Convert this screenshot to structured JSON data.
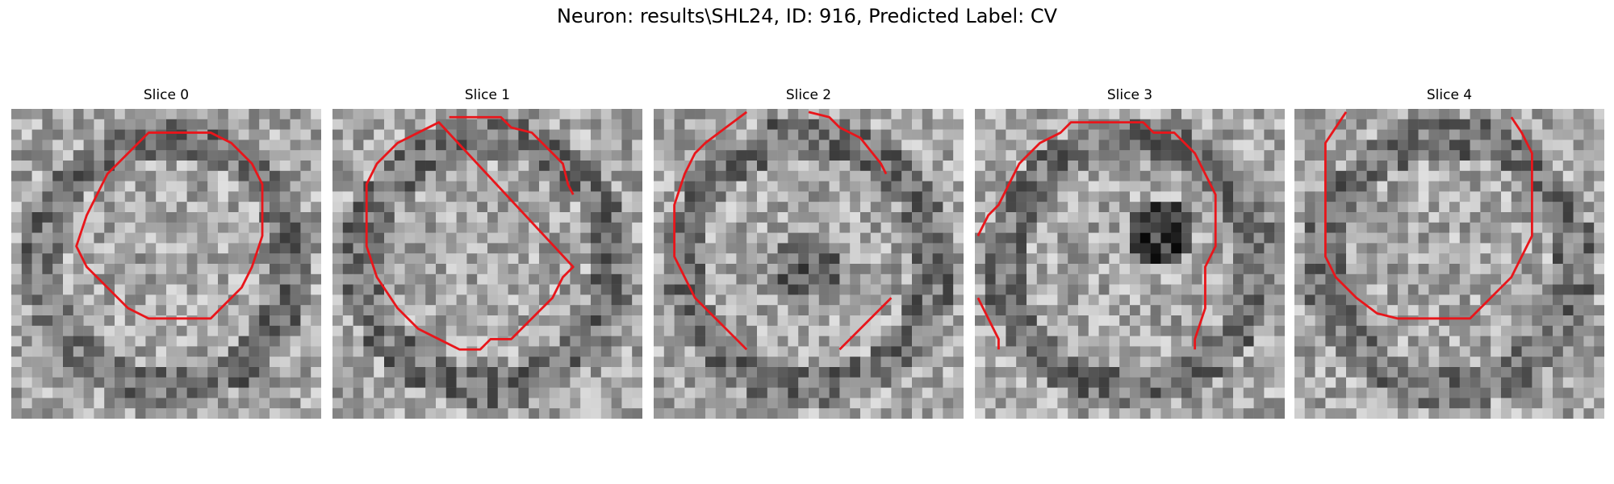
{
  "figure": {
    "title": "Neuron: results\\SHL24, ID: 916, Predicted Label: CV"
  },
  "panels": [
    {
      "title": "Slice 0",
      "seed": 11,
      "variant": 0
    },
    {
      "title": "Slice 1",
      "seed": 23,
      "variant": 1
    },
    {
      "title": "Slice 2",
      "seed": 37,
      "variant": 2
    },
    {
      "title": "Slice 3",
      "seed": 41,
      "variant": 3
    },
    {
      "title": "Slice 4",
      "seed": 53,
      "variant": 4
    }
  ],
  "colors": {
    "contour": "#e8161b"
  }
}
